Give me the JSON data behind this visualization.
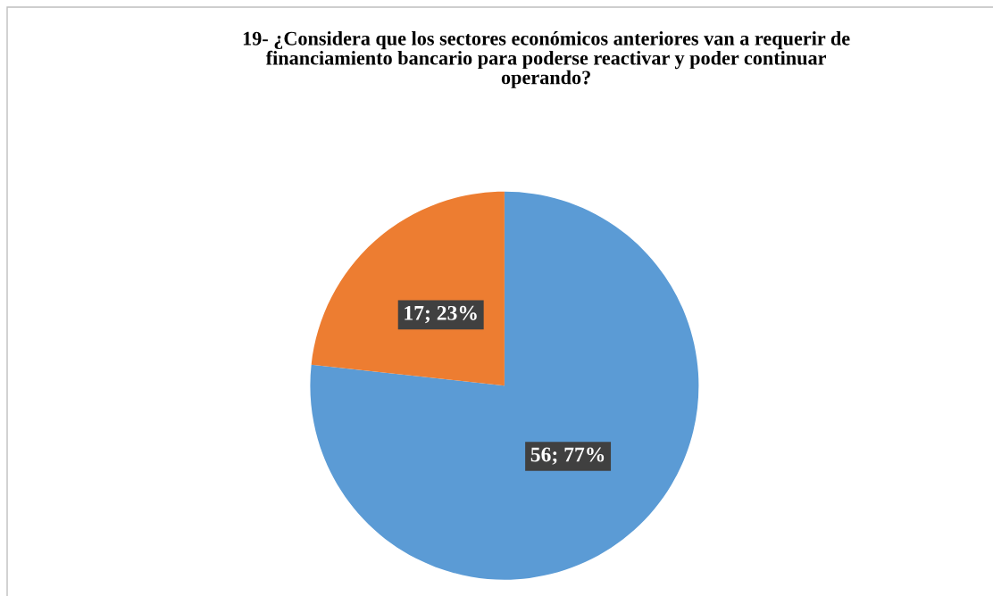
{
  "chart_data": {
    "type": "pie",
    "title": "19- ¿Considera que los sectores económicos anteriores van a requerir de\nfinanciamiento bancario para poderse reactivar y poder continuar\noperando?",
    "categories": [
      null,
      null
    ],
    "values": [
      56,
      17
    ],
    "colors": [
      "#5b9bd5",
      "#ed7d31"
    ],
    "value_labels": [
      "56; 77%",
      "17; 23%"
    ],
    "legend": false
  }
}
